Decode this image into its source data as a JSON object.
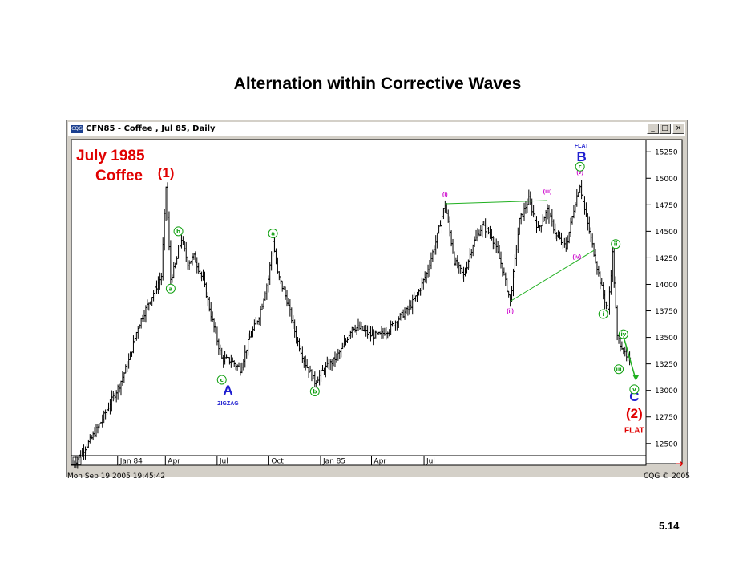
{
  "slide": {
    "title": "Alternation within Corrective Waves",
    "page_number": "5.14"
  },
  "window": {
    "title": "CFN85 - Coffee , Jul 85, Daily",
    "icon_text": "CQG",
    "buttons": {
      "minimize": "_",
      "maximize": "□",
      "close": "×"
    },
    "timestamp": "Mon Sep 19 2005 19:45:42",
    "copyright": "CQG © 2005",
    "nav_arrow": "➔"
  },
  "chart_data": {
    "type": "bar",
    "subtype": "ohlc-daily",
    "title": "July 1985 Coffee",
    "title_lines": [
      "July 1985",
      "Coffee"
    ],
    "xlabel": "",
    "ylabel": "",
    "x_tick_labels": [
      "Jan 84",
      "Apr",
      "Jul",
      "Oct",
      "Jan 85",
      "Apr",
      "Jul"
    ],
    "y_tick_labels": [
      15250,
      15000,
      14750,
      14500,
      14250,
      14000,
      13750,
      13500,
      13250,
      13000,
      12750,
      12500
    ],
    "ylim": [
      12400,
      15350
    ],
    "grid": false,
    "colors": {
      "waves": "#e00000",
      "primary": "#1f1fd0",
      "minor": "#cc00cc",
      "subminor": "#10a010",
      "trendline": "#20b020",
      "bars": "#000000",
      "arrow": "#e00000"
    },
    "price_anchors": [
      [
        0,
        12300
      ],
      [
        6,
        12420
      ],
      [
        12,
        12550
      ],
      [
        18,
        12700
      ],
      [
        24,
        12880
      ],
      [
        30,
        13050
      ],
      [
        36,
        13280
      ],
      [
        42,
        13600
      ],
      [
        48,
        13800
      ],
      [
        54,
        13980
      ],
      [
        57,
        14080
      ],
      [
        60,
        14920
      ],
      [
        63,
        14050
      ],
      [
        66,
        14180
      ],
      [
        70,
        14430
      ],
      [
        74,
        14200
      ],
      [
        78,
        14260
      ],
      [
        84,
        14040
      ],
      [
        90,
        13650
      ],
      [
        96,
        13300
      ],
      [
        102,
        13280
      ],
      [
        108,
        13200
      ],
      [
        114,
        13500
      ],
      [
        120,
        13700
      ],
      [
        126,
        14050
      ],
      [
        129,
        14420
      ],
      [
        132,
        14100
      ],
      [
        138,
        13850
      ],
      [
        144,
        13500
      ],
      [
        150,
        13250
      ],
      [
        156,
        13080
      ],
      [
        162,
        13200
      ],
      [
        168,
        13280
      ],
      [
        174,
        13400
      ],
      [
        180,
        13600
      ],
      [
        186,
        13580
      ],
      [
        192,
        13520
      ],
      [
        198,
        13520
      ],
      [
        204,
        13580
      ],
      [
        210,
        13680
      ],
      [
        216,
        13760
      ],
      [
        222,
        13900
      ],
      [
        228,
        14100
      ],
      [
        234,
        14400
      ],
      [
        240,
        14760
      ],
      [
        246,
        14220
      ],
      [
        252,
        14080
      ],
      [
        258,
        14380
      ],
      [
        264,
        14550
      ],
      [
        270,
        14460
      ],
      [
        276,
        14200
      ],
      [
        282,
        13840
      ],
      [
        288,
        14600
      ],
      [
        294,
        14800
      ],
      [
        300,
        14520
      ],
      [
        306,
        14700
      ],
      [
        312,
        14450
      ],
      [
        318,
        14350
      ],
      [
        324,
        14780
      ],
      [
        327,
        14940
      ],
      [
        330,
        14700
      ],
      [
        336,
        14300
      ],
      [
        342,
        13900
      ],
      [
        345,
        13750
      ],
      [
        348,
        14290
      ],
      [
        351,
        13500
      ],
      [
        354,
        13420
      ],
      [
        357,
        13300
      ],
      [
        359,
        13280
      ]
    ],
    "trendline_upper": [
      [
        240,
        14760
      ],
      [
        306,
        14790
      ]
    ],
    "trendline_lower": [
      [
        282,
        13840
      ],
      [
        336,
        14320
      ]
    ],
    "labels": [
      {
        "text": "(1)",
        "class": "waves",
        "t": 60,
        "p": 15010,
        "size": 17
      },
      {
        "text": "A",
        "class": "primary",
        "t": 100,
        "p": 12960,
        "size": 17
      },
      {
        "text": "ZIGZAG",
        "class": "primary",
        "t": 100,
        "p": 12860,
        "size": 7
      },
      {
        "text": "FLAT",
        "class": "primary",
        "t": 328,
        "p": 15290,
        "size": 7
      },
      {
        "text": "B",
        "class": "primary",
        "t": 328,
        "p": 15160,
        "size": 17
      },
      {
        "text": "C",
        "class": "primary",
        "t": 362,
        "p": 12900,
        "size": 17
      },
      {
        "text": "(2)",
        "class": "waves",
        "t": 362,
        "p": 12740,
        "size": 17
      },
      {
        "text": "FLAT",
        "class": "waves",
        "t": 362,
        "p": 12600,
        "size": 10
      },
      {
        "text": "(i)",
        "class": "minor",
        "t": 240,
        "p": 14830,
        "size": 7
      },
      {
        "text": "(ii)",
        "class": "minor",
        "t": 282,
        "p": 13730,
        "size": 7
      },
      {
        "text": "(iii)",
        "class": "minor",
        "t": 306,
        "p": 14860,
        "size": 7
      },
      {
        "text": "(iv)",
        "class": "minor",
        "t": 325,
        "p": 14240,
        "size": 7
      },
      {
        "text": "(v)",
        "class": "minor",
        "t": 327,
        "p": 15040,
        "size": 7
      }
    ],
    "circle_labels": [
      {
        "text": "a",
        "t": 63,
        "p": 13960
      },
      {
        "text": "b",
        "t": 68,
        "p": 14500
      },
      {
        "text": "c",
        "t": 96,
        "p": 13100
      },
      {
        "text": "a",
        "t": 129,
        "p": 14480
      },
      {
        "text": "b",
        "t": 156,
        "p": 12990
      },
      {
        "text": "c",
        "t": 327,
        "p": 15110
      },
      {
        "text": "i",
        "t": 342,
        "p": 13720
      },
      {
        "text": "ii",
        "t": 350,
        "p": 14380
      },
      {
        "text": "iii",
        "t": 352,
        "p": 13200
      },
      {
        "text": "iv",
        "t": 355,
        "p": 13530
      },
      {
        "text": "v",
        "t": 362,
        "p": 13010
      }
    ],
    "arrow": {
      "from": [
        355,
        13510
      ],
      "to": [
        363,
        13100
      ]
    }
  }
}
